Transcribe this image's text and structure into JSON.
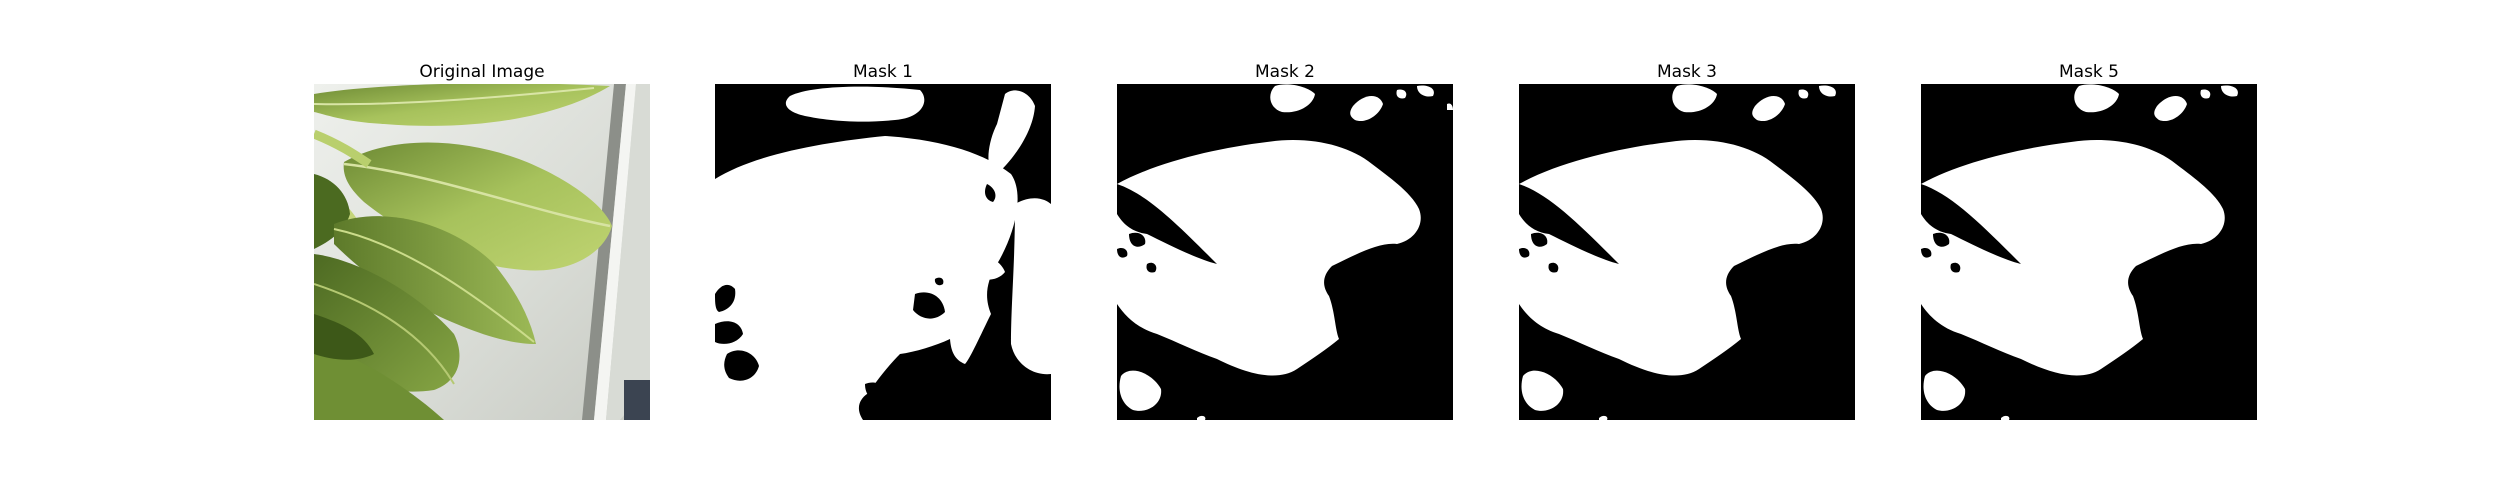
{
  "figure": {
    "background": "#ffffff",
    "panels": [
      {
        "title": "Original Image",
        "kind": "photo"
      },
      {
        "title": "Mask 1",
        "kind": "mask"
      },
      {
        "title": "Mask 2",
        "kind": "mask"
      },
      {
        "title": "Mask 3",
        "kind": "mask"
      },
      {
        "title": "Mask 5",
        "kind": "mask"
      }
    ],
    "colors": {
      "mask_foreground": "#ffffff",
      "mask_background": "#000000",
      "leaf_light": "#a7c25c",
      "leaf_dark": "#5d7a2a",
      "photo_background": "#e7e9e3"
    }
  }
}
